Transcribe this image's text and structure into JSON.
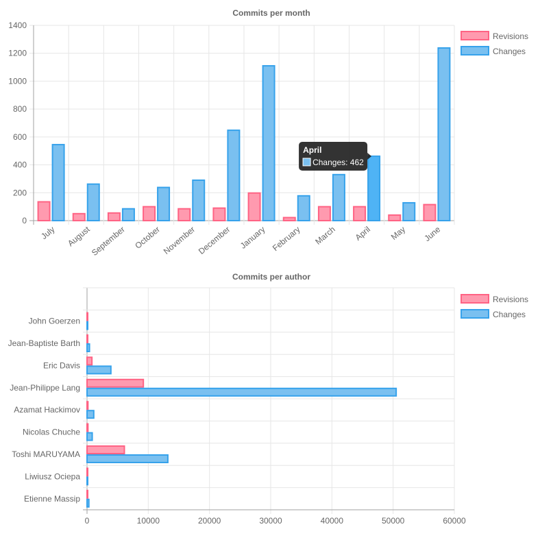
{
  "chart_data": [
    {
      "type": "bar",
      "orientation": "vertical",
      "title": "Commits per month",
      "categories": [
        "July",
        "August",
        "September",
        "October",
        "November",
        "December",
        "January",
        "February",
        "March",
        "April",
        "May",
        "June"
      ],
      "series": [
        {
          "name": "Revisions",
          "values": [
            135,
            50,
            55,
            100,
            85,
            90,
            198,
            22,
            100,
            100,
            40,
            115
          ]
        },
        {
          "name": "Changes",
          "values": [
            545,
            262,
            85,
            238,
            290,
            648,
            1110,
            178,
            330,
            462,
            128,
            1238
          ]
        }
      ],
      "ylim": [
        0,
        1400
      ],
      "yticks": [
        0,
        200,
        400,
        600,
        800,
        1000,
        1200,
        1400
      ],
      "grid": true,
      "legend_position": "right",
      "tooltip": {
        "title": "April",
        "label": "Changes: 462"
      }
    },
    {
      "type": "bar",
      "orientation": "horizontal",
      "title": "Commits per author",
      "categories": [
        "",
        "John Goerzen",
        "Jean-Baptiste Barth",
        "Eric Davis",
        "Jean-Philippe Lang",
        "Azamat Hackimov",
        "Nicolas Chuche",
        "Toshi MARUYAMA",
        "Liwiusz Ociepa",
        "Etienne Massip"
      ],
      "series": [
        {
          "name": "Revisions",
          "values": [
            0,
            10,
            80,
            800,
            9200,
            150,
            150,
            6100,
            20,
            10
          ]
        },
        {
          "name": "Changes",
          "values": [
            0,
            20,
            400,
            3900,
            50500,
            1100,
            850,
            13200,
            50,
            300
          ]
        }
      ],
      "xlim": [
        0,
        60000
      ],
      "xticks": [
        0,
        10000,
        20000,
        30000,
        40000,
        50000,
        60000
      ],
      "grid": true,
      "legend_position": "right"
    }
  ],
  "colors": {
    "revisions_fill": "#ff9aaf",
    "revisions_border": "#ff6384",
    "changes_fill": "#7ac0f0",
    "changes_border": "#36a2eb",
    "grid": "#e6e6e6",
    "axis": "#a0a0a0",
    "tooltip_bg": "#222222"
  }
}
